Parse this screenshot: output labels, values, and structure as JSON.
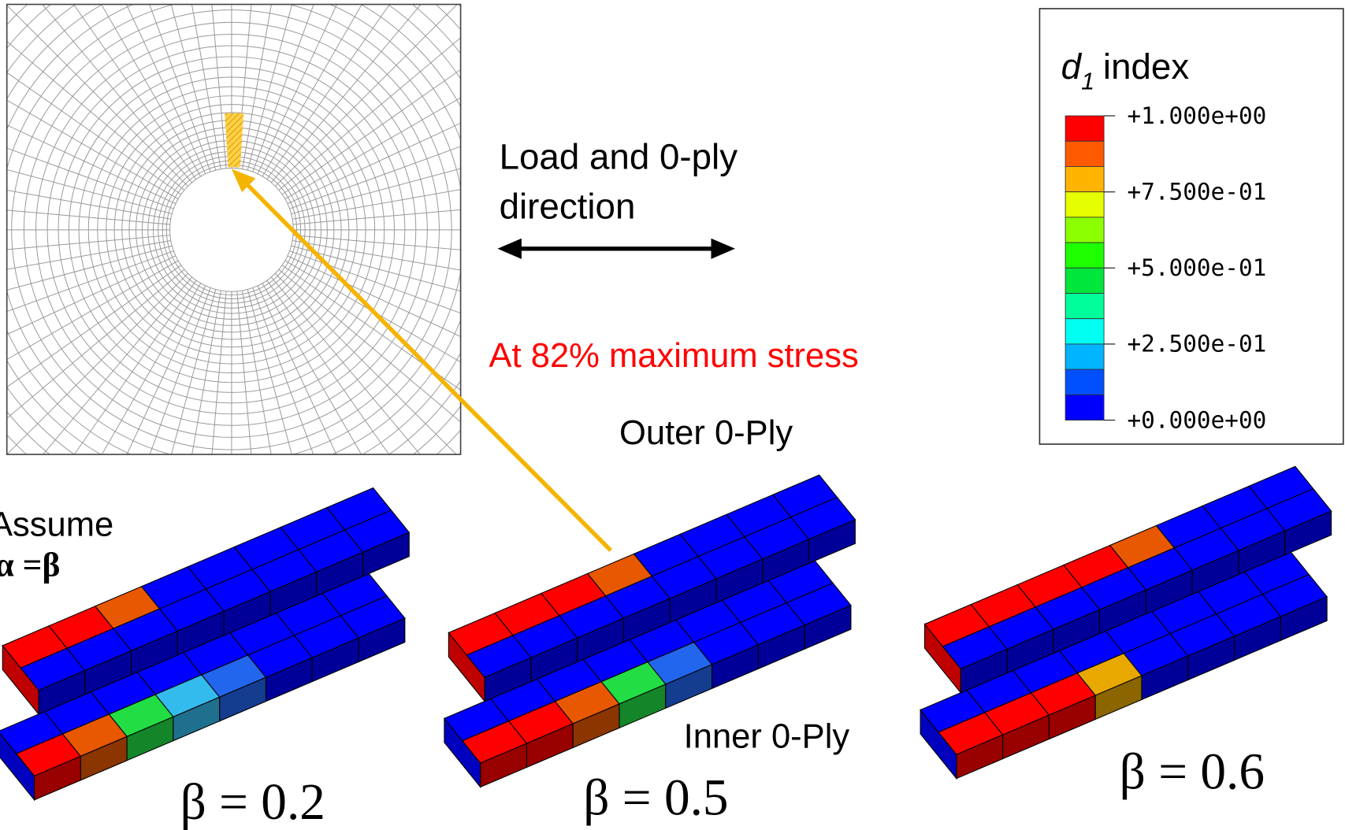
{
  "annotations": {
    "load_direction": [
      "Load and 0-ply",
      "direction"
    ],
    "stress_level": "At 82% maximum stress",
    "outer_ply": "Outer 0-Ply",
    "inner_ply": "Inner 0-Ply",
    "assumption": [
      "Assume",
      "α =β"
    ]
  },
  "legend": {
    "title": {
      "symbol": "d",
      "subscript": "1",
      "text": "index"
    },
    "ticks": [
      "+1.000e+00",
      "+7.500e-01",
      "+5.000e-01",
      "+2.500e-01",
      "+0.000e+00"
    ]
  },
  "cases": [
    "β = 0.2",
    "β = 0.5",
    "β = 0.6"
  ]
}
